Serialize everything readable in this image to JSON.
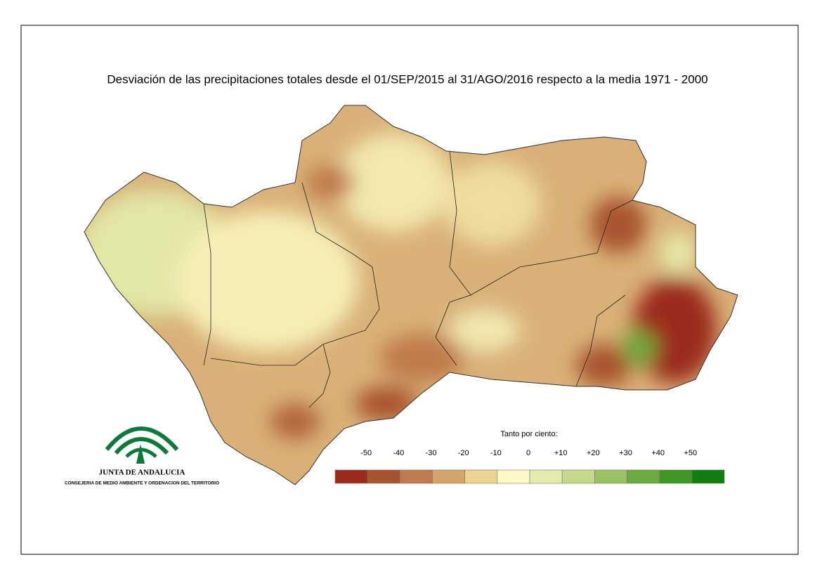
{
  "title": "Desviación de las precipitaciones totales desde el 01/SEP/2015 al 31/AGO/2016 respecto a la media 1971 - 2000",
  "logo": {
    "name": "JUNTA DE ANDALUCIA",
    "department": "CONSEJERIA DE MEDIO AMBIENTE Y ORDENACION DEL TERRITORIO"
  },
  "legend": {
    "title": "Tanto por ciento:",
    "labels": [
      "-50",
      "-40",
      "-30",
      "-20",
      "-10",
      "0",
      "+10",
      "+20",
      "+30",
      "+40",
      "+50"
    ],
    "colors": [
      "#9b2a1b",
      "#a9532e",
      "#c07a4c",
      "#d5a46b",
      "#ecd490",
      "#fdf8c6",
      "#e6eaa8",
      "#c4d98a",
      "#9ac162",
      "#6bab3d",
      "#3f9724",
      "#107f10"
    ]
  }
}
